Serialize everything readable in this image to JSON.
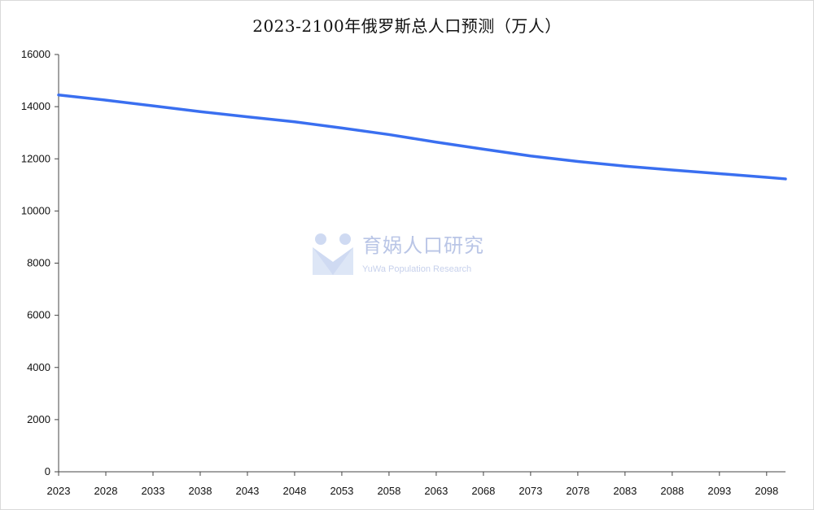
{
  "chart_data": {
    "type": "line",
    "title": "2023-2100年俄罗斯总人口预测（万人）",
    "xlabel": "",
    "ylabel": "",
    "ylim": [
      0,
      16000
    ],
    "y_ticks": [
      0,
      2000,
      4000,
      6000,
      8000,
      10000,
      12000,
      14000,
      16000
    ],
    "x_ticks": [
      2023,
      2028,
      2033,
      2038,
      2043,
      2048,
      2053,
      2058,
      2063,
      2068,
      2073,
      2078,
      2083,
      2088,
      2093,
      2098
    ],
    "x_range": [
      2023,
      2100
    ],
    "grid": false,
    "legend": "none",
    "series": [
      {
        "color": "#3a6ff0",
        "x": [
          2023,
          2028,
          2033,
          2038,
          2043,
          2048,
          2053,
          2058,
          2063,
          2068,
          2073,
          2078,
          2083,
          2088,
          2093,
          2098,
          2100
        ],
        "values": [
          14450,
          14250,
          14030,
          13810,
          13610,
          13420,
          13180,
          12930,
          12640,
          12370,
          12110,
          11900,
          11720,
          11570,
          11430,
          11290,
          11230
        ]
      }
    ]
  },
  "watermark": {
    "name_cn": "育娲人口研究",
    "name_en": "YuWa Population Research",
    "color": "#b9c5e6"
  }
}
